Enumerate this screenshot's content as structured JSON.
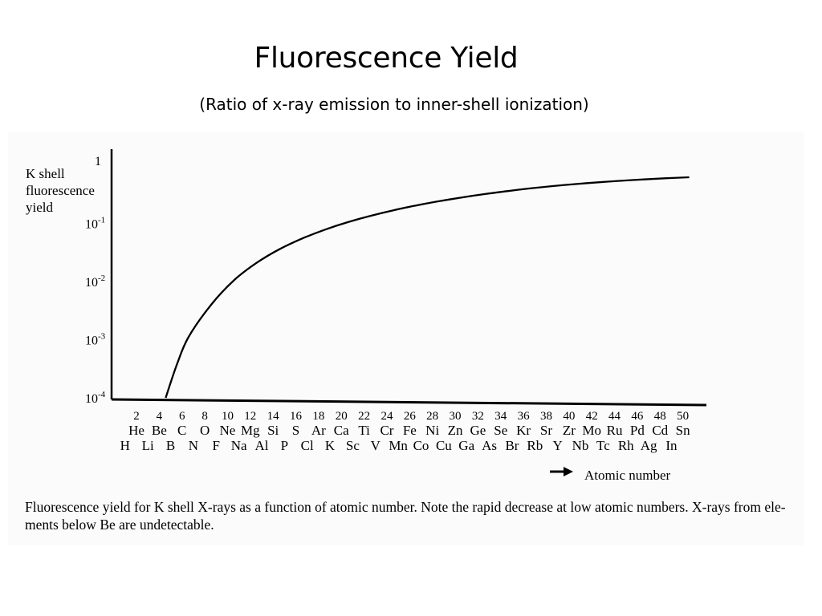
{
  "slide": {
    "title": "Fluorescence Yield",
    "subtitle": "(Ratio of x-ray emission to inner-shell ionization)"
  },
  "chart_data": {
    "type": "line",
    "ylabel": "K shell fluorescence yield",
    "xlabel": "Atomic number",
    "y_scale": "log",
    "ylim": [
      0.0001,
      1
    ],
    "y_ticks": [
      {
        "value": 1,
        "base": "1",
        "exp": ""
      },
      {
        "value": 0.1,
        "base": "10",
        "exp": "-1"
      },
      {
        "value": 0.01,
        "base": "10",
        "exp": "-2"
      },
      {
        "value": 0.001,
        "base": "10",
        "exp": "-3"
      },
      {
        "value": 0.0001,
        "base": "10",
        "exp": "-4"
      }
    ],
    "xlim": [
      1,
      50
    ],
    "x_ticks": [
      2,
      4,
      6,
      8,
      10,
      12,
      14,
      16,
      18,
      20,
      22,
      24,
      26,
      28,
      30,
      32,
      34,
      36,
      38,
      40,
      42,
      44,
      46,
      48,
      50
    ],
    "elements_even_row": [
      "He",
      "Be",
      "C",
      "O",
      "Ne",
      "Mg",
      "Si",
      "S",
      "Ar",
      "Ca",
      "Ti",
      "Cr",
      "Fe",
      "Ni",
      "Zn",
      "Ge",
      "Se",
      "Kr",
      "Sr",
      "Zr",
      "Mo",
      "Ru",
      "Pd",
      "Cd",
      "Sn"
    ],
    "elements_odd_row": [
      "H",
      "Li",
      "B",
      "N",
      "F",
      "Na",
      "Al",
      "P",
      "Cl",
      "K",
      "Sc",
      "V",
      "Mn",
      "Co",
      "Cu",
      "Ga",
      "As",
      "Br",
      "Rb",
      "Y",
      "Nb",
      "Tc",
      "Rh",
      "Ag",
      "In"
    ],
    "series": [
      {
        "x": [
          4,
          5,
          6,
          8,
          10,
          12,
          14,
          16,
          18,
          20,
          22,
          24,
          26,
          28,
          30,
          32,
          34,
          36,
          38,
          40,
          42,
          44,
          46,
          48,
          50
        ],
        "y": [
          0.0001,
          0.00038,
          0.0011,
          0.004,
          0.0105,
          0.021,
          0.036,
          0.055,
          0.078,
          0.105,
          0.135,
          0.168,
          0.203,
          0.24,
          0.279,
          0.319,
          0.359,
          0.399,
          0.438,
          0.474,
          0.508,
          0.54,
          0.57,
          0.597,
          0.621
        ]
      }
    ]
  },
  "caption": "Fluorescence yield for K shell X-rays as a function of atomic number. Note the rapid decrease at low atomic numbers. X-rays from ele- ments below Be are undetectable."
}
